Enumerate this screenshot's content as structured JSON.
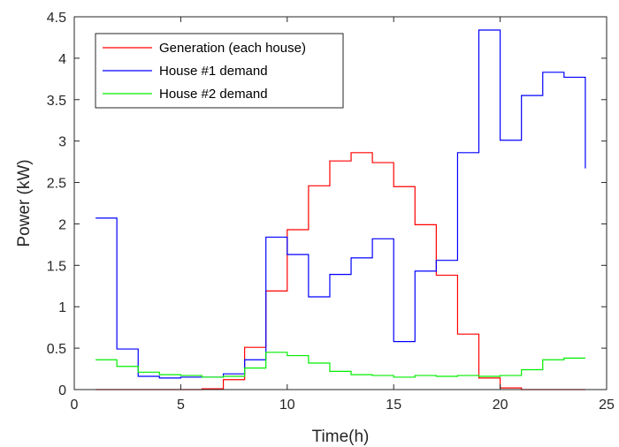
{
  "chart_data": {
    "type": "line",
    "title": "",
    "xlabel": "Time(h)",
    "ylabel": "Power (kW)",
    "xlim": [
      0,
      25
    ],
    "ylim": [
      0,
      4.5
    ],
    "xticks": [
      0,
      5,
      10,
      15,
      20,
      25
    ],
    "xtick_labels": [
      "0",
      "5",
      "10",
      "15",
      "20",
      "25"
    ],
    "yticks": [
      0,
      0.5,
      1,
      1.5,
      2,
      2.5,
      3,
      3.5,
      4,
      4.5
    ],
    "ytick_labels": [
      "0",
      "0.5",
      "1",
      "1.5",
      "2",
      "2.5",
      "3",
      "3.5",
      "4",
      "4.5"
    ],
    "grid": false,
    "legend_position": "top-left",
    "step_style": "stairs",
    "x": [
      1,
      2,
      3,
      4,
      5,
      6,
      7,
      8,
      9,
      10,
      11,
      12,
      13,
      14,
      15,
      16,
      17,
      18,
      19,
      20,
      21,
      22,
      23,
      24
    ],
    "series": [
      {
        "name": "Generation (each house)",
        "color": "#ff0000",
        "values": [
          0,
          0,
          0,
          0,
          0,
          0.01,
          0.12,
          0.51,
          1.19,
          1.93,
          2.46,
          2.76,
          2.86,
          2.74,
          2.45,
          1.99,
          1.38,
          0.67,
          0.14,
          0.02,
          0,
          0,
          0,
          0
        ]
      },
      {
        "name": "House #1 demand",
        "color": "#0000ff",
        "values": [
          2.07,
          0.49,
          0.16,
          0.14,
          0.15,
          0.15,
          0.19,
          0.36,
          1.84,
          1.63,
          1.12,
          1.39,
          1.59,
          1.82,
          0.58,
          1.43,
          1.56,
          2.86,
          4.34,
          3.01,
          3.55,
          3.83,
          3.77,
          2.67
        ]
      },
      {
        "name": "House #2 demand",
        "color": "#00ee00",
        "values": [
          0.36,
          0.28,
          0.21,
          0.18,
          0.17,
          0.15,
          0.16,
          0.26,
          0.45,
          0.41,
          0.32,
          0.22,
          0.18,
          0.17,
          0.15,
          0.17,
          0.16,
          0.17,
          0.16,
          0.17,
          0.24,
          0.36,
          0.38,
          0.38
        ]
      }
    ]
  }
}
